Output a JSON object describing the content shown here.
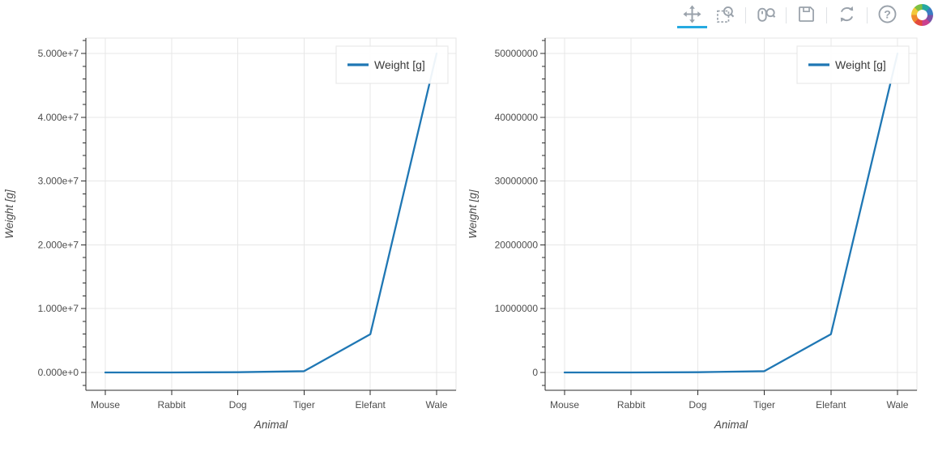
{
  "toolbar": {
    "active_color": "#26aae1",
    "icon_color": "#9aa2ab",
    "logo_colors": [
      "#25a8a2",
      "#3a7cc3",
      "#7b52a7",
      "#c9408f",
      "#e34a3e",
      "#ef8b2e",
      "#f2c83b",
      "#7ec043"
    ],
    "tools": [
      {
        "name": "pan",
        "icon": "pan-icon",
        "active": true,
        "sep_after": false
      },
      {
        "name": "box-zoom",
        "icon": "box-zoom-icon",
        "active": false,
        "sep_after": true
      },
      {
        "name": "wheel-zoom",
        "icon": "wheel-zoom-icon",
        "active": false,
        "sep_after": true
      },
      {
        "name": "save",
        "icon": "save-icon",
        "active": false,
        "sep_after": true
      },
      {
        "name": "reset",
        "icon": "reset-icon",
        "active": false,
        "sep_after": true
      },
      {
        "name": "help",
        "icon": "help-icon",
        "active": false,
        "sep_after": false
      }
    ],
    "logo": "bokeh-logo"
  },
  "chart_data": [
    {
      "type": "line",
      "title": "",
      "categories": [
        "Mouse",
        "Rabbit",
        "Dog",
        "Tiger",
        "Elefant",
        "Wale"
      ],
      "series": [
        {
          "name": "Weight [g]",
          "color": "#1f77b4",
          "values": [
            20,
            3000,
            40000,
            200000,
            6000000,
            50000000
          ]
        }
      ],
      "xlabel": "Animal",
      "ylabel": "Weight [g]",
      "ylim": [
        0,
        50000000
      ],
      "yticks": [
        0,
        10000000,
        20000000,
        30000000,
        40000000,
        50000000
      ],
      "ytick_labels": [
        "0.000e+0",
        "1.000e+7",
        "2.000e+7",
        "3.000e+7",
        "4.000e+7",
        "5.000e+7"
      ],
      "grid": true,
      "legend": {
        "position": "top_right",
        "entries": [
          "Weight [g]"
        ]
      }
    },
    {
      "type": "line",
      "title": "",
      "categories": [
        "Mouse",
        "Rabbit",
        "Dog",
        "Tiger",
        "Elefant",
        "Wale"
      ],
      "series": [
        {
          "name": "Weight [g]",
          "color": "#1f77b4",
          "values": [
            20,
            3000,
            40000,
            200000,
            6000000,
            50000000
          ]
        }
      ],
      "xlabel": "Animal",
      "ylabel": "Weight [g]",
      "ylim": [
        0,
        50000000
      ],
      "yticks": [
        0,
        10000000,
        20000000,
        30000000,
        40000000,
        50000000
      ],
      "ytick_labels": [
        "0",
        "10000000",
        "20000000",
        "30000000",
        "40000000",
        "50000000"
      ],
      "grid": true,
      "legend": {
        "position": "top_right",
        "entries": [
          "Weight [g]"
        ]
      }
    }
  ]
}
